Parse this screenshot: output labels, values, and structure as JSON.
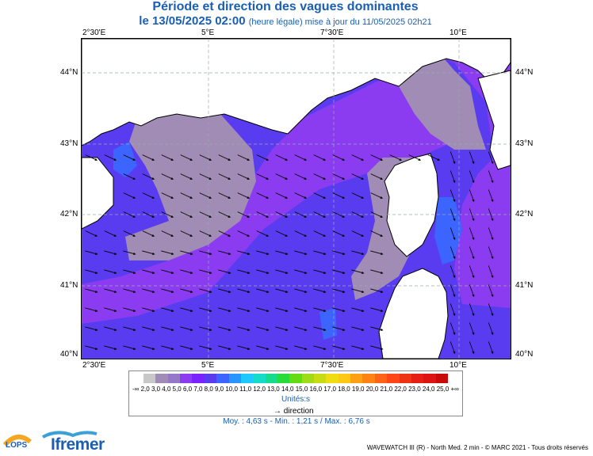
{
  "title": "Période et direction des vagues dominantes",
  "subtitle_date": "le 13/05/2025 02:00",
  "subtitle_note": "(heure légale) mise à jour du 11/05/2025 02h21",
  "lon_labels": [
    "2°30'E",
    "5°E",
    "7°30'E",
    "10°E"
  ],
  "lat_labels": [
    "44°N",
    "43°N",
    "42°N",
    "41°N",
    "40°N"
  ],
  "scale_ticks": [
    "-∞",
    "2,0",
    "3,0",
    "4,0",
    "5,0",
    "6,0",
    "7,0",
    "8,0",
    "9,0",
    "10,0",
    "11,0",
    "12,0",
    "13,0",
    "14,0",
    "15,0",
    "16,0",
    "17,0",
    "18,0",
    "19,0",
    "20,0",
    "21,0",
    "22,0",
    "23,0",
    "24,0",
    "25,0",
    "+∞"
  ],
  "scale_colors": [
    "#c8c8c8",
    "#a08cb4",
    "#9678c8",
    "#8c3cf0",
    "#7a22ff",
    "#5a3cf0",
    "#3c64ff",
    "#2896ff",
    "#1ec8ff",
    "#14dcc8",
    "#14dc8c",
    "#28dc3c",
    "#64dc14",
    "#a0dc14",
    "#c8dc14",
    "#f0dc14",
    "#ffc814",
    "#ffa014",
    "#ff8214",
    "#ff6414",
    "#ff4614",
    "#f03214",
    "#e61e14",
    "#dc1414",
    "#c80a0a"
  ],
  "units_label": "Unités:s",
  "direction_label": "direction",
  "stats": "Moy. : 4,63 s   -   Min. : 1,21 s / Max. : 6,76 s",
  "credit": "WAVEWATCH III (R) - North Med. 2 min - © MARC 2021 - Tous droits réservés",
  "logos": {
    "lops": "LOPS",
    "ifremer": "Ifremer"
  },
  "colors": {
    "title": "#1a5fb4",
    "period_2_3": "#a08cb4",
    "period_4_5": "#8c3cf0",
    "period_5_6": "#5a3cf0",
    "land": "#ffffff"
  }
}
